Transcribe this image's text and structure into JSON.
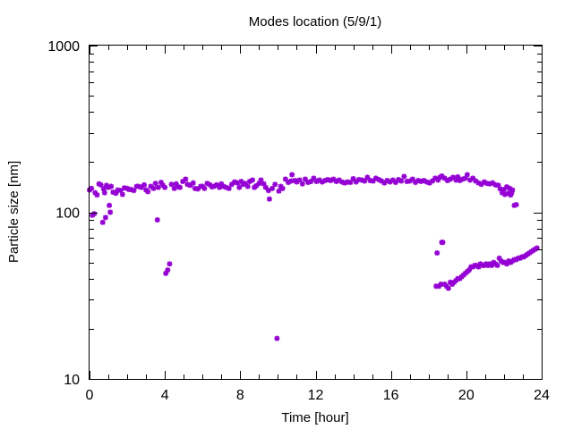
{
  "chart_data": {
    "type": "scatter",
    "title": "Modes location (5/9/1)",
    "xlabel": "Time [hour]",
    "ylabel": "Particle size [nm]",
    "xlim": [
      0,
      24
    ],
    "ylim": [
      10,
      1000
    ],
    "yscale": "log",
    "x_ticks": [
      "0",
      "4",
      "8",
      "12",
      "16",
      "20",
      "24"
    ],
    "y_ticks": [
      "10",
      "100",
      "1000"
    ],
    "grid": false,
    "legend": "none",
    "marker_color": "#9400d3",
    "series": [
      {
        "points": [
          [
            0.0,
            136
          ],
          [
            0.1,
            139
          ],
          [
            0.15,
            96
          ],
          [
            0.25,
            98
          ],
          [
            0.3,
            131
          ],
          [
            0.4,
            127
          ],
          [
            0.5,
            148
          ],
          [
            0.6,
            146
          ],
          [
            0.7,
            87
          ],
          [
            0.75,
            138
          ],
          [
            0.8,
            131
          ],
          [
            0.85,
            93
          ],
          [
            0.9,
            145
          ],
          [
            1.0,
            141
          ],
          [
            1.05,
            110
          ],
          [
            1.1,
            100
          ],
          [
            1.15,
            143
          ],
          [
            1.25,
            132
          ],
          [
            1.4,
            130
          ],
          [
            1.5,
            136
          ],
          [
            1.65,
            135
          ],
          [
            1.75,
            128
          ],
          [
            1.85,
            140
          ],
          [
            2.0,
            139
          ],
          [
            2.1,
            137
          ],
          [
            2.2,
            137
          ],
          [
            2.35,
            135
          ],
          [
            2.5,
            143
          ],
          [
            2.6,
            143
          ],
          [
            2.75,
            141
          ],
          [
            2.9,
            146
          ],
          [
            3.0,
            136
          ],
          [
            3.1,
            133
          ],
          [
            3.25,
            143
          ],
          [
            3.4,
            139
          ],
          [
            3.5,
            149
          ],
          [
            3.6,
            90
          ],
          [
            3.65,
            141
          ],
          [
            3.8,
            151
          ],
          [
            3.9,
            145
          ],
          [
            4.0,
            141
          ],
          [
            4.05,
            43
          ],
          [
            4.15,
            45
          ],
          [
            4.25,
            49
          ],
          [
            4.35,
            147
          ],
          [
            4.5,
            139
          ],
          [
            4.6,
            148
          ],
          [
            4.7,
            142
          ],
          [
            4.8,
            141
          ],
          [
            4.95,
            153
          ],
          [
            5.1,
            158
          ],
          [
            5.2,
            147
          ],
          [
            5.35,
            145
          ],
          [
            5.5,
            150
          ],
          [
            5.6,
            139
          ],
          [
            5.75,
            138
          ],
          [
            5.9,
            143
          ],
          [
            6.0,
            143
          ],
          [
            6.1,
            139
          ],
          [
            6.25,
            149
          ],
          [
            6.4,
            146
          ],
          [
            6.5,
            142
          ],
          [
            6.6,
            143
          ],
          [
            6.75,
            146
          ],
          [
            6.9,
            141
          ],
          [
            7.0,
            148
          ],
          [
            7.1,
            143
          ],
          [
            7.25,
            141
          ],
          [
            7.4,
            139
          ],
          [
            7.55,
            147
          ],
          [
            7.7,
            152
          ],
          [
            7.85,
            150
          ],
          [
            7.95,
            141
          ],
          [
            8.05,
            153
          ],
          [
            8.15,
            147
          ],
          [
            8.25,
            149
          ],
          [
            8.4,
            143
          ],
          [
            8.5,
            153
          ],
          [
            8.65,
            156
          ],
          [
            8.75,
            141
          ],
          [
            8.85,
            144
          ],
          [
            9.0,
            149
          ],
          [
            9.1,
            156
          ],
          [
            9.25,
            148
          ],
          [
            9.35,
            141
          ],
          [
            9.5,
            135
          ],
          [
            9.55,
            120
          ],
          [
            9.7,
            139
          ],
          [
            9.85,
            147
          ],
          [
            9.95,
            17.5
          ],
          [
            10.05,
            134
          ],
          [
            10.15,
            143
          ],
          [
            10.25,
            139
          ],
          [
            10.4,
            158
          ],
          [
            10.55,
            151
          ],
          [
            10.7,
            154
          ],
          [
            10.75,
            168
          ],
          [
            10.9,
            155
          ],
          [
            11.0,
            152
          ],
          [
            11.15,
            156
          ],
          [
            11.3,
            148
          ],
          [
            11.45,
            158
          ],
          [
            11.6,
            151
          ],
          [
            11.75,
            153
          ],
          [
            11.9,
            160
          ],
          [
            12.05,
            153
          ],
          [
            12.2,
            156
          ],
          [
            12.35,
            152
          ],
          [
            12.5,
            155
          ],
          [
            12.65,
            157
          ],
          [
            12.8,
            155
          ],
          [
            12.95,
            158
          ],
          [
            13.1,
            153
          ],
          [
            13.25,
            156
          ],
          [
            13.4,
            152
          ],
          [
            13.55,
            150
          ],
          [
            13.7,
            152
          ],
          [
            13.85,
            151
          ],
          [
            14.0,
            159
          ],
          [
            14.15,
            152
          ],
          [
            14.3,
            157
          ],
          [
            14.45,
            156
          ],
          [
            14.6,
            154
          ],
          [
            14.75,
            162
          ],
          [
            14.9,
            155
          ],
          [
            15.05,
            154
          ],
          [
            15.2,
            160
          ],
          [
            15.35,
            157
          ],
          [
            15.5,
            154
          ],
          [
            15.65,
            150
          ],
          [
            15.8,
            155
          ],
          [
            15.95,
            152
          ],
          [
            16.1,
            156
          ],
          [
            16.25,
            151
          ],
          [
            16.4,
            157
          ],
          [
            16.55,
            154
          ],
          [
            16.7,
            164
          ],
          [
            16.85,
            153
          ],
          [
            17.0,
            154
          ],
          [
            17.15,
            158
          ],
          [
            17.3,
            151
          ],
          [
            17.45,
            155
          ],
          [
            17.6,
            153
          ],
          [
            17.75,
            155
          ],
          [
            17.9,
            152
          ],
          [
            18.05,
            150
          ],
          [
            18.2,
            154
          ],
          [
            18.35,
            160
          ],
          [
            18.5,
            156
          ],
          [
            18.4,
            36
          ],
          [
            18.45,
            57
          ],
          [
            18.55,
            36
          ],
          [
            18.65,
            37
          ],
          [
            18.7,
            66
          ],
          [
            18.75,
            66
          ],
          [
            18.85,
            37
          ],
          [
            18.95,
            36
          ],
          [
            19.05,
            35
          ],
          [
            19.15,
            38
          ],
          [
            19.25,
            37
          ],
          [
            19.35,
            38
          ],
          [
            19.45,
            39
          ],
          [
            19.55,
            40
          ],
          [
            19.65,
            40
          ],
          [
            19.75,
            41
          ],
          [
            19.85,
            42
          ],
          [
            19.95,
            43
          ],
          [
            20.05,
            44
          ],
          [
            20.15,
            45
          ],
          [
            20.25,
            47
          ],
          [
            20.35,
            47
          ],
          [
            20.45,
            48
          ],
          [
            20.55,
            48
          ],
          [
            20.65,
            47
          ],
          [
            20.75,
            49
          ],
          [
            20.85,
            48
          ],
          [
            20.95,
            48
          ],
          [
            21.05,
            49
          ],
          [
            21.15,
            48
          ],
          [
            21.25,
            49
          ],
          [
            21.35,
            48
          ],
          [
            21.45,
            50
          ],
          [
            21.55,
            49
          ],
          [
            21.65,
            48
          ],
          [
            21.75,
            53
          ],
          [
            21.85,
            51
          ],
          [
            21.95,
            50
          ],
          [
            22.05,
            50
          ],
          [
            22.15,
            49
          ],
          [
            22.25,
            51
          ],
          [
            22.35,
            50
          ],
          [
            22.45,
            51
          ],
          [
            22.55,
            52
          ],
          [
            22.65,
            52
          ],
          [
            22.75,
            53
          ],
          [
            22.85,
            53
          ],
          [
            22.95,
            54
          ],
          [
            23.05,
            54
          ],
          [
            23.15,
            55
          ],
          [
            23.25,
            56
          ],
          [
            23.35,
            57
          ],
          [
            23.45,
            58
          ],
          [
            23.55,
            59
          ],
          [
            23.65,
            60
          ],
          [
            23.75,
            61
          ],
          [
            18.6,
            162
          ],
          [
            18.7,
            165
          ],
          [
            18.85,
            160
          ],
          [
            19.0,
            155
          ],
          [
            19.15,
            158
          ],
          [
            19.3,
            162
          ],
          [
            19.45,
            156
          ],
          [
            19.55,
            163
          ],
          [
            19.65,
            155
          ],
          [
            19.8,
            158
          ],
          [
            19.95,
            160
          ],
          [
            20.05,
            168
          ],
          [
            20.2,
            156
          ],
          [
            20.35,
            160
          ],
          [
            20.5,
            154
          ],
          [
            20.65,
            150
          ],
          [
            20.8,
            147
          ],
          [
            20.95,
            152
          ],
          [
            21.1,
            149
          ],
          [
            21.25,
            148
          ],
          [
            21.4,
            150
          ],
          [
            21.55,
            146
          ],
          [
            21.7,
            145
          ],
          [
            21.8,
            138
          ],
          [
            21.9,
            131
          ],
          [
            22.0,
            137
          ],
          [
            22.05,
            128
          ],
          [
            22.15,
            142
          ],
          [
            22.25,
            130
          ],
          [
            22.3,
            139
          ],
          [
            22.35,
            127
          ],
          [
            22.4,
            130
          ],
          [
            22.45,
            136
          ],
          [
            22.55,
            110
          ],
          [
            22.65,
            111
          ]
        ]
      }
    ]
  }
}
